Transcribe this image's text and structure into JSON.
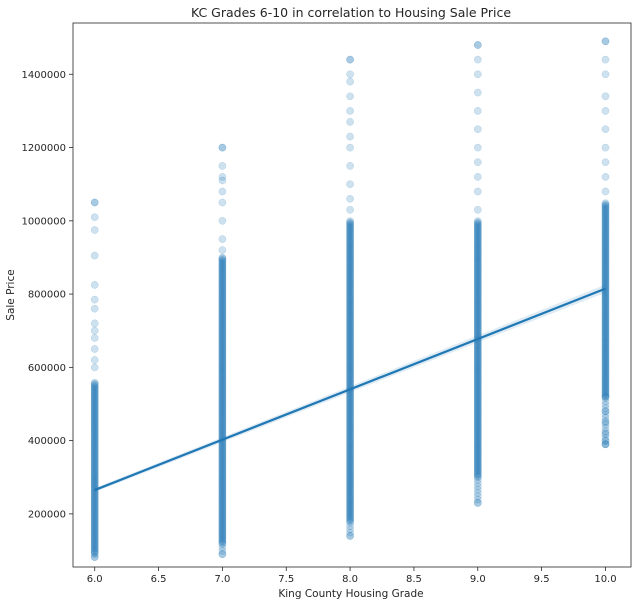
{
  "chart_data": {
    "type": "scatter",
    "title": "KC Grades 6-10 in correlation to Housing Sale Price",
    "xlabel": "King County Housing Grade",
    "ylabel": "Sale Price",
    "xlim": [
      5.83,
      10.2
    ],
    "ylim": [
      55000,
      1540000
    ],
    "x_ticks": [
      6.0,
      6.5,
      7.0,
      7.5,
      8.0,
      8.5,
      9.0,
      9.5,
      10.0
    ],
    "x_tick_labels": [
      "6.0",
      "6.5",
      "7.0",
      "7.5",
      "8.0",
      "8.5",
      "9.0",
      "9.5",
      "10.0"
    ],
    "y_ticks": [
      200000,
      400000,
      600000,
      800000,
      1000000,
      1200000,
      1400000
    ],
    "y_tick_labels": [
      "200000",
      "400000",
      "600000",
      "800000",
      "1000000",
      "1200000",
      "1400000"
    ],
    "grid": false,
    "series": [
      {
        "color": "#1f77b4",
        "groups": [
          {
            "x": 6.0,
            "min": 82000,
            "max": 1050000,
            "dense_range": [
              90000,
              560000
            ],
            "outliers": [
              600000,
              620000,
              650000,
              680000,
              700000,
              720000,
              760000,
              785000,
              825000,
              905000,
              975000,
              1010000,
              1050000
            ]
          },
          {
            "x": 7.0,
            "min": 90000,
            "max": 1200000,
            "dense_range": [
              120000,
              900000
            ],
            "outliers": [
              920000,
              950000,
              1000000,
              1050000,
              1080000,
              1110000,
              1120000,
              1150000,
              1200000
            ]
          },
          {
            "x": 8.0,
            "min": 140000,
            "max": 1440000,
            "dense_range": [
              180000,
              1000000
            ],
            "outliers": [
              1030000,
              1060000,
              1100000,
              1150000,
              1200000,
              1230000,
              1270000,
              1300000,
              1340000,
              1380000,
              1400000,
              1440000
            ]
          },
          {
            "x": 9.0,
            "min": 230000,
            "max": 1480000,
            "dense_range": [
              300000,
              1000000
            ],
            "outliers": [
              1030000,
              1080000,
              1120000,
              1160000,
              1200000,
              1250000,
              1300000,
              1350000,
              1400000,
              1440000,
              1480000
            ]
          },
          {
            "x": 10.0,
            "min": 390000,
            "max": 1490000,
            "dense_range": [
              520000,
              1050000
            ],
            "outliers": [
              390000,
              400000,
              420000,
              450000,
              480000,
              520000,
              1080000,
              1120000,
              1160000,
              1200000,
              1250000,
              1300000,
              1340000,
              1400000,
              1440000,
              1490000
            ]
          }
        ]
      }
    ],
    "regression_line": {
      "x": [
        6.0,
        10.0
      ],
      "y": [
        265000,
        815000
      ],
      "color": "#1f77b4"
    }
  }
}
